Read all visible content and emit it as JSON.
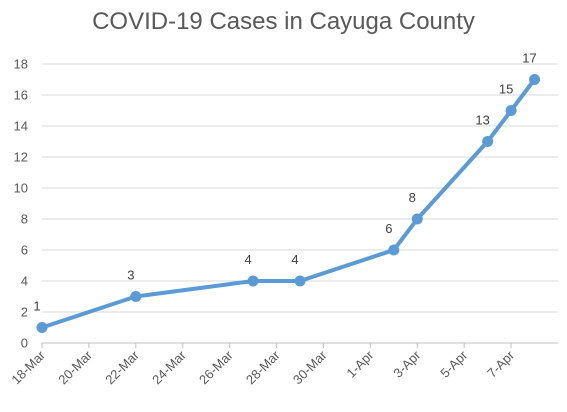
{
  "chart_data": {
    "type": "line",
    "title": "COVID-19 Cases in Cayuga County",
    "xlabel": "",
    "ylabel": "",
    "x_tick_labels": [
      "18-Mar",
      "20-Mar",
      "22-Mar",
      "24-Mar",
      "26-Mar",
      "28-Mar",
      "30-Mar",
      "1-Apr",
      "3-Apr",
      "5-Apr",
      "7-Apr"
    ],
    "y_ticks": [
      0,
      2,
      4,
      6,
      8,
      10,
      12,
      14,
      16,
      18
    ],
    "ylim": [
      0,
      18
    ],
    "xlim": [
      "2020-03-18",
      "2020-04-09"
    ],
    "grid": true,
    "legend": "none",
    "series": [
      {
        "color": "#5b9bd5",
        "points": [
          {
            "x": "2020-03-18",
            "y": 1,
            "label": "1"
          },
          {
            "x": "2020-03-22",
            "y": 3,
            "label": "3"
          },
          {
            "x": "2020-03-27",
            "y": 4,
            "label": "4"
          },
          {
            "x": "2020-03-29",
            "y": 4,
            "label": "4"
          },
          {
            "x": "2020-04-02",
            "y": 6,
            "label": "6"
          },
          {
            "x": "2020-04-03",
            "y": 8,
            "label": "8"
          },
          {
            "x": "2020-04-06",
            "y": 13,
            "label": "13"
          },
          {
            "x": "2020-04-07",
            "y": 15,
            "label": "15"
          },
          {
            "x": "2020-04-08",
            "y": 17,
            "label": "17"
          }
        ]
      }
    ]
  },
  "colors": {
    "line": "#5b9bd5",
    "grid": "#d9d9d9",
    "axis": "#bfbfbf",
    "text": "#595959"
  }
}
